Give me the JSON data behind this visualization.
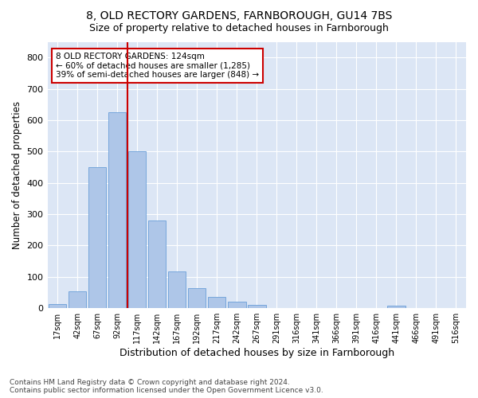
{
  "title1": "8, OLD RECTORY GARDENS, FARNBOROUGH, GU14 7BS",
  "title2": "Size of property relative to detached houses in Farnborough",
  "xlabel": "Distribution of detached houses by size in Farnborough",
  "ylabel": "Number of detached properties",
  "footnote": "Contains HM Land Registry data © Crown copyright and database right 2024.\nContains public sector information licensed under the Open Government Licence v3.0.",
  "bar_labels": [
    "17sqm",
    "42sqm",
    "67sqm",
    "92sqm",
    "117sqm",
    "142sqm",
    "167sqm",
    "192sqm",
    "217sqm",
    "242sqm",
    "267sqm",
    "291sqm",
    "316sqm",
    "341sqm",
    "366sqm",
    "391sqm",
    "416sqm",
    "441sqm",
    "466sqm",
    "491sqm",
    "516sqm"
  ],
  "bar_values": [
    13,
    55,
    450,
    625,
    500,
    280,
    118,
    63,
    35,
    20,
    10,
    0,
    0,
    0,
    0,
    0,
    0,
    8,
    0,
    0,
    0
  ],
  "bar_color": "#aec6e8",
  "bar_edge_color": "#6a9fd8",
  "vline_x": 3.5,
  "vline_color": "#cc0000",
  "annotation_text": "8 OLD RECTORY GARDENS: 124sqm\n← 60% of detached houses are smaller (1,285)\n39% of semi-detached houses are larger (848) →",
  "annotation_box_color": "#ffffff",
  "annotation_box_edge": "#cc0000",
  "ylim": [
    0,
    850
  ],
  "yticks": [
    0,
    100,
    200,
    300,
    400,
    500,
    600,
    700,
    800
  ],
  "bg_color": "#dce6f5",
  "title1_fontsize": 10,
  "title2_fontsize": 9,
  "xlabel_fontsize": 9,
  "ylabel_fontsize": 8.5
}
